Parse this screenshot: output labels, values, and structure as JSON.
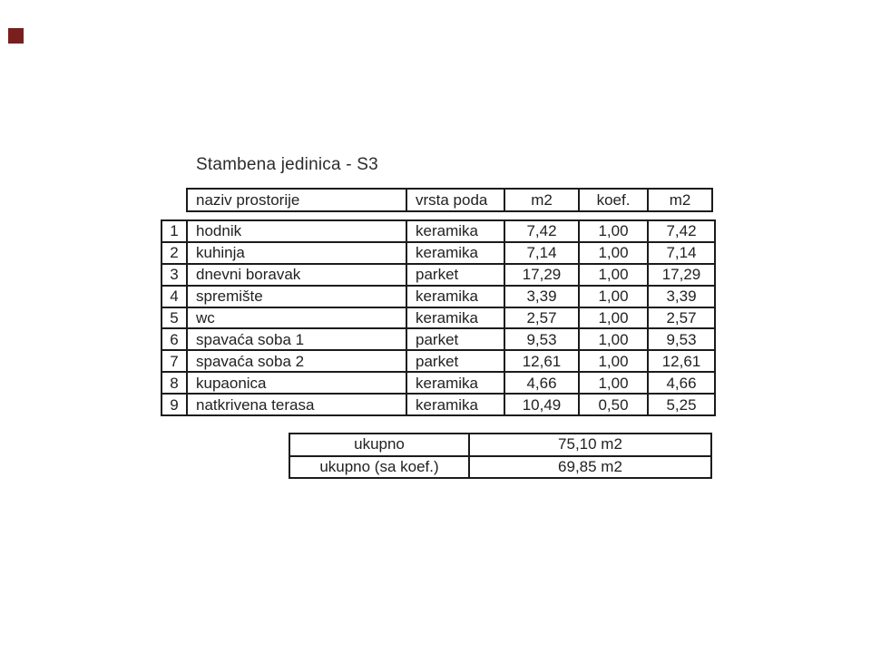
{
  "title": "Stambena jedinica - S3",
  "corner_mark": {
    "color": "#7a1e1e"
  },
  "table": {
    "headers": {
      "name": "naziv prostorije",
      "floor": "vrsta poda",
      "m2": "m2",
      "koef": "koef.",
      "m2_adj": "m2"
    },
    "rows": [
      {
        "num": "1",
        "name": "hodnik",
        "floor": "keramika",
        "m2": "7,42",
        "koef": "1,00",
        "m2_adj": "7,42"
      },
      {
        "num": "2",
        "name": "kuhinja",
        "floor": "keramika",
        "m2": "7,14",
        "koef": "1,00",
        "m2_adj": "7,14"
      },
      {
        "num": "3",
        "name": "dnevni boravak",
        "floor": "parket",
        "m2": "17,29",
        "koef": "1,00",
        "m2_adj": "17,29"
      },
      {
        "num": "4",
        "name": "spremište",
        "floor": "keramika",
        "m2": "3,39",
        "koef": "1,00",
        "m2_adj": "3,39"
      },
      {
        "num": "5",
        "name": "wc",
        "floor": "keramika",
        "m2": "2,57",
        "koef": "1,00",
        "m2_adj": "2,57"
      },
      {
        "num": "6",
        "name": "spavaća soba 1",
        "floor": "parket",
        "m2": "9,53",
        "koef": "1,00",
        "m2_adj": "9,53"
      },
      {
        "num": "7",
        "name": "spavaća soba 2",
        "floor": "parket",
        "m2": "12,61",
        "koef": "1,00",
        "m2_adj": "12,61"
      },
      {
        "num": "8",
        "name": "kupaonica",
        "floor": "keramika",
        "m2": "4,66",
        "koef": "1,00",
        "m2_adj": "4,66"
      },
      {
        "num": "9",
        "name": "natkrivena terasa",
        "floor": "keramika",
        "m2": "10,49",
        "koef": "0,50",
        "m2_adj": "5,25"
      }
    ]
  },
  "summary": {
    "rows": [
      {
        "label": "ukupno",
        "value": "75,10 m2"
      },
      {
        "label": "ukupno (sa koef.)",
        "value": "69,85 m2"
      }
    ]
  }
}
